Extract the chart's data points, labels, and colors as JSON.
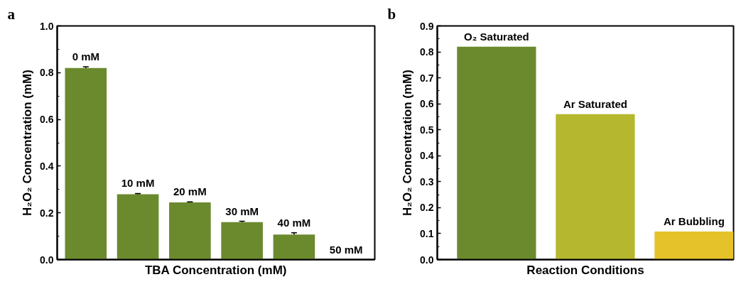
{
  "chart_data": [
    {
      "type": "bar",
      "xlabel": "TBA Concentration (mM)",
      "ylabel": "H₂O₂ Concentration (mM)",
      "annotations": [
        "a"
      ],
      "categories": [
        "0 mM",
        "10 mM",
        "20 mM",
        "30 mM",
        "40 mM",
        "50 mM"
      ],
      "values": [
        0.82,
        0.28,
        0.245,
        0.16,
        0.107,
        0
      ],
      "errors": [
        0.005,
        0.003,
        0.002,
        0.004,
        0.008,
        null
      ],
      "color": "#6b8a2e",
      "ylim": [
        0,
        1.0
      ],
      "yticks": [
        {
          "value": 0,
          "label": "0.0"
        },
        {
          "value": 0.1,
          "label": null
        },
        {
          "value": 0.2,
          "label": "0.2"
        },
        {
          "value": 0.3,
          "label": null
        },
        {
          "value": 0.4,
          "label": "0.4"
        },
        {
          "value": 0.5,
          "label": null
        },
        {
          "value": 0.6,
          "label": "0.6"
        },
        {
          "value": 0.7,
          "label": null
        },
        {
          "value": 0.8,
          "label": "0.8"
        },
        {
          "value": 0.9,
          "label": null
        },
        {
          "value": 1.0,
          "label": "1.0"
        }
      ],
      "tick_labels": "y",
      "grid": false
    },
    {
      "type": "bar",
      "xlabel": "Reaction Conditions",
      "ylabel": "H₂O₂ Concentration (mM)",
      "annotations": [
        "b"
      ],
      "categories": [
        "O₂ Saturated",
        "Ar Saturated",
        "Ar Bubbling"
      ],
      "values": [
        0.82,
        0.56,
        0.108
      ],
      "colors": [
        "#6b8a2e",
        "#b5b82e",
        "#e6c22a"
      ],
      "ylim": [
        0,
        0.9
      ],
      "yticks": [
        {
          "value": 0,
          "label": "0.0"
        },
        {
          "value": 0.05,
          "label": null
        },
        {
          "value": 0.1,
          "label": "0.1"
        },
        {
          "value": 0.15,
          "label": null
        },
        {
          "value": 0.2,
          "label": "0.2"
        },
        {
          "value": 0.25,
          "label": null
        },
        {
          "value": 0.3,
          "label": "0.3"
        },
        {
          "value": 0.35,
          "label": null
        },
        {
          "value": 0.4,
          "label": "0.4"
        },
        {
          "value": 0.45,
          "label": null
        },
        {
          "value": 0.5,
          "label": "0.5"
        },
        {
          "value": 0.55,
          "label": null
        },
        {
          "value": 0.6,
          "label": "0.6"
        },
        {
          "value": 0.65,
          "label": null
        },
        {
          "value": 0.7,
          "label": "0.7"
        },
        {
          "value": 0.75,
          "label": null
        },
        {
          "value": 0.8,
          "label": "0.8"
        },
        {
          "value": 0.85,
          "label": null
        },
        {
          "value": 0.9,
          "label": "0.9"
        }
      ],
      "tick_labels": "y",
      "grid": false
    }
  ]
}
